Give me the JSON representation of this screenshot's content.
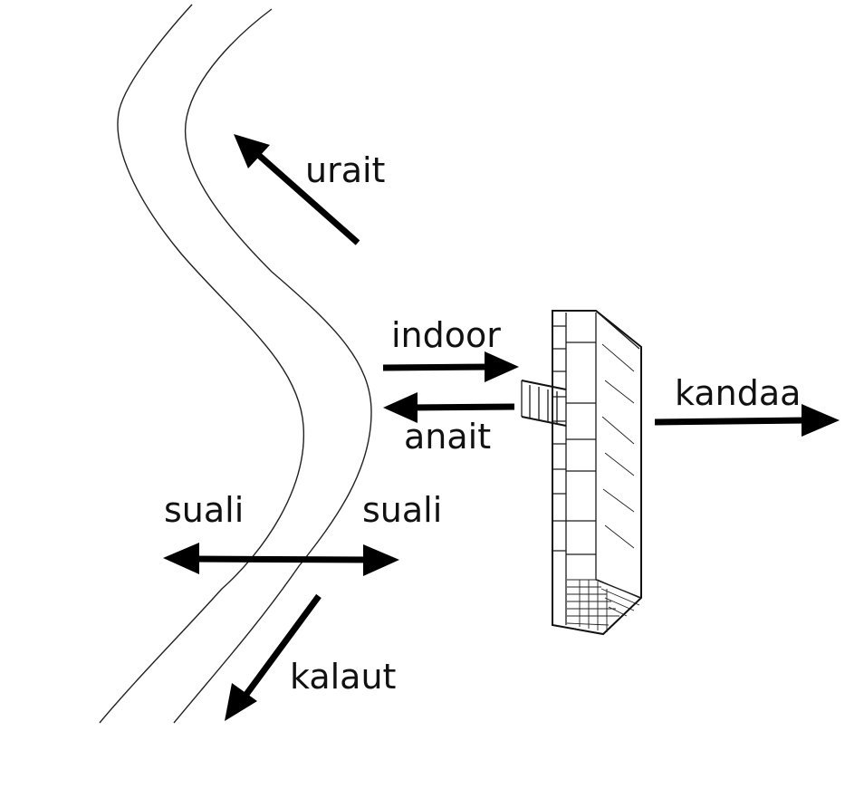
{
  "labels": {
    "upriver": "urait",
    "indoor": "indoor",
    "anait": "anait",
    "kandaa": "kandaa",
    "suali_left": "suali",
    "suali_right": "suali",
    "downriver": "kalaut"
  },
  "colors": {
    "ink": "#000000",
    "background": "#ffffff"
  }
}
